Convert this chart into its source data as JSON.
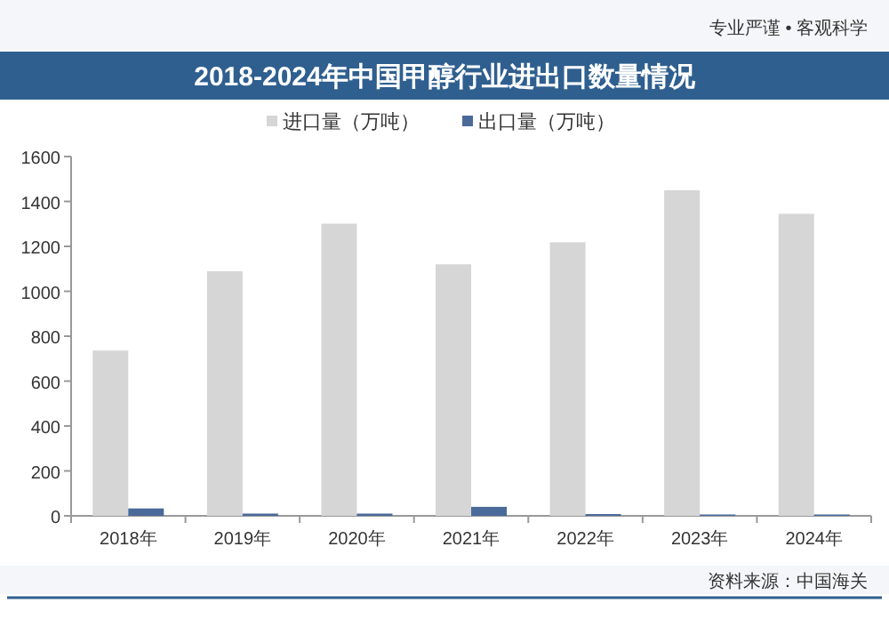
{
  "chart_data": {
    "type": "bar",
    "title": "2018-2024年中国甲醇行业进出口数量情况",
    "categories": [
      "2018年",
      "2019年",
      "2020年",
      "2021年",
      "2022年",
      "2023年",
      "2024年"
    ],
    "series": [
      {
        "name": "进口量（万吨）",
        "color": "#d6d6d6",
        "values": [
          736,
          1089,
          1301,
          1120,
          1218,
          1450,
          1345
        ]
      },
      {
        "name": "出口量（万吨）",
        "color": "#4a6a9a",
        "values": [
          33,
          10,
          10,
          40,
          8,
          6,
          6
        ]
      }
    ],
    "ylim": [
      0,
      1600
    ],
    "yticks": [
      0,
      200,
      400,
      600,
      800,
      1000,
      1200,
      1400,
      1600
    ],
    "legend": "top",
    "grid": false,
    "annotations": [
      "专业严谨 • 客观科学",
      "资料来源：中国海关"
    ]
  }
}
